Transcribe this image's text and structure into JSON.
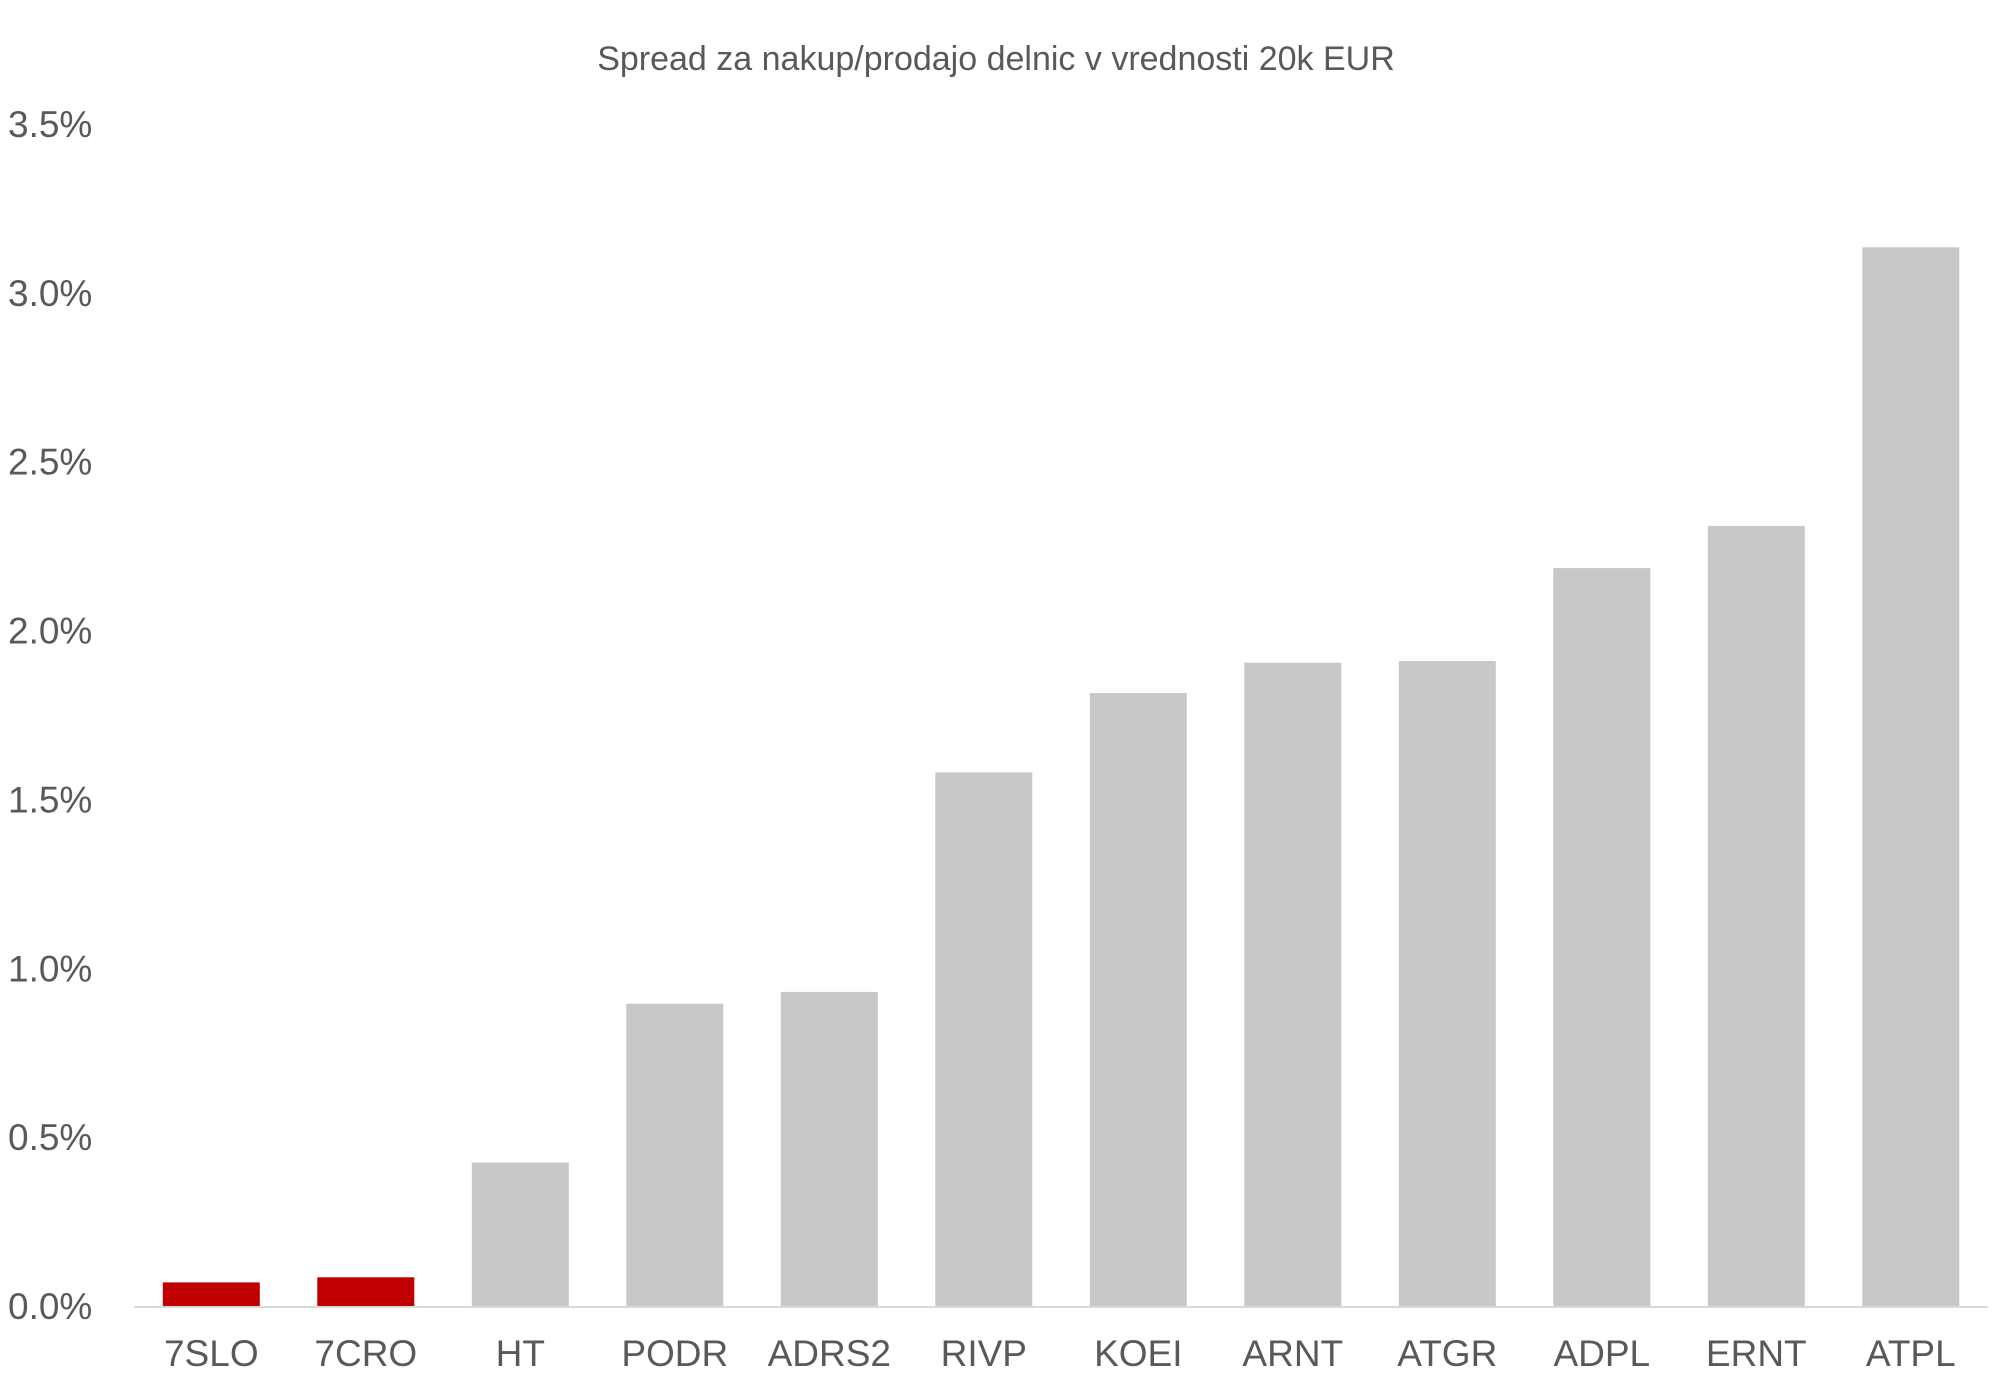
{
  "chart_data": {
    "type": "bar",
    "title": "Spread za nakup/prodajo delnic v vrednosti 20k EUR",
    "xlabel": "",
    "ylabel": "",
    "ylim": [
      0,
      3.5
    ],
    "y_ticks": [
      0.0,
      0.5,
      1.0,
      1.5,
      2.0,
      2.5,
      3.0,
      3.5
    ],
    "y_tick_labels": [
      "0.0%",
      "0.5%",
      "1.0%",
      "1.5%",
      "2.0%",
      "2.5%",
      "3.0%",
      "3.5%"
    ],
    "grid": false,
    "legend": "none",
    "categories": [
      "7SLO",
      "7CRO",
      "HT",
      "PODR",
      "ADRS2",
      "RIVP",
      "KOEI",
      "ARNT",
      "ATGR",
      "ADPL",
      "ERNT",
      "ATPL"
    ],
    "values": [
      0.07,
      0.085,
      0.425,
      0.895,
      0.93,
      1.58,
      1.815,
      1.905,
      1.91,
      2.185,
      2.31,
      3.135
    ],
    "highlight_categories": [
      "7SLO",
      "7CRO"
    ],
    "colors": {
      "highlight": "#C00000",
      "default": "#C8C8C8",
      "axis": "#D9D9D9",
      "text": "#595959"
    }
  }
}
